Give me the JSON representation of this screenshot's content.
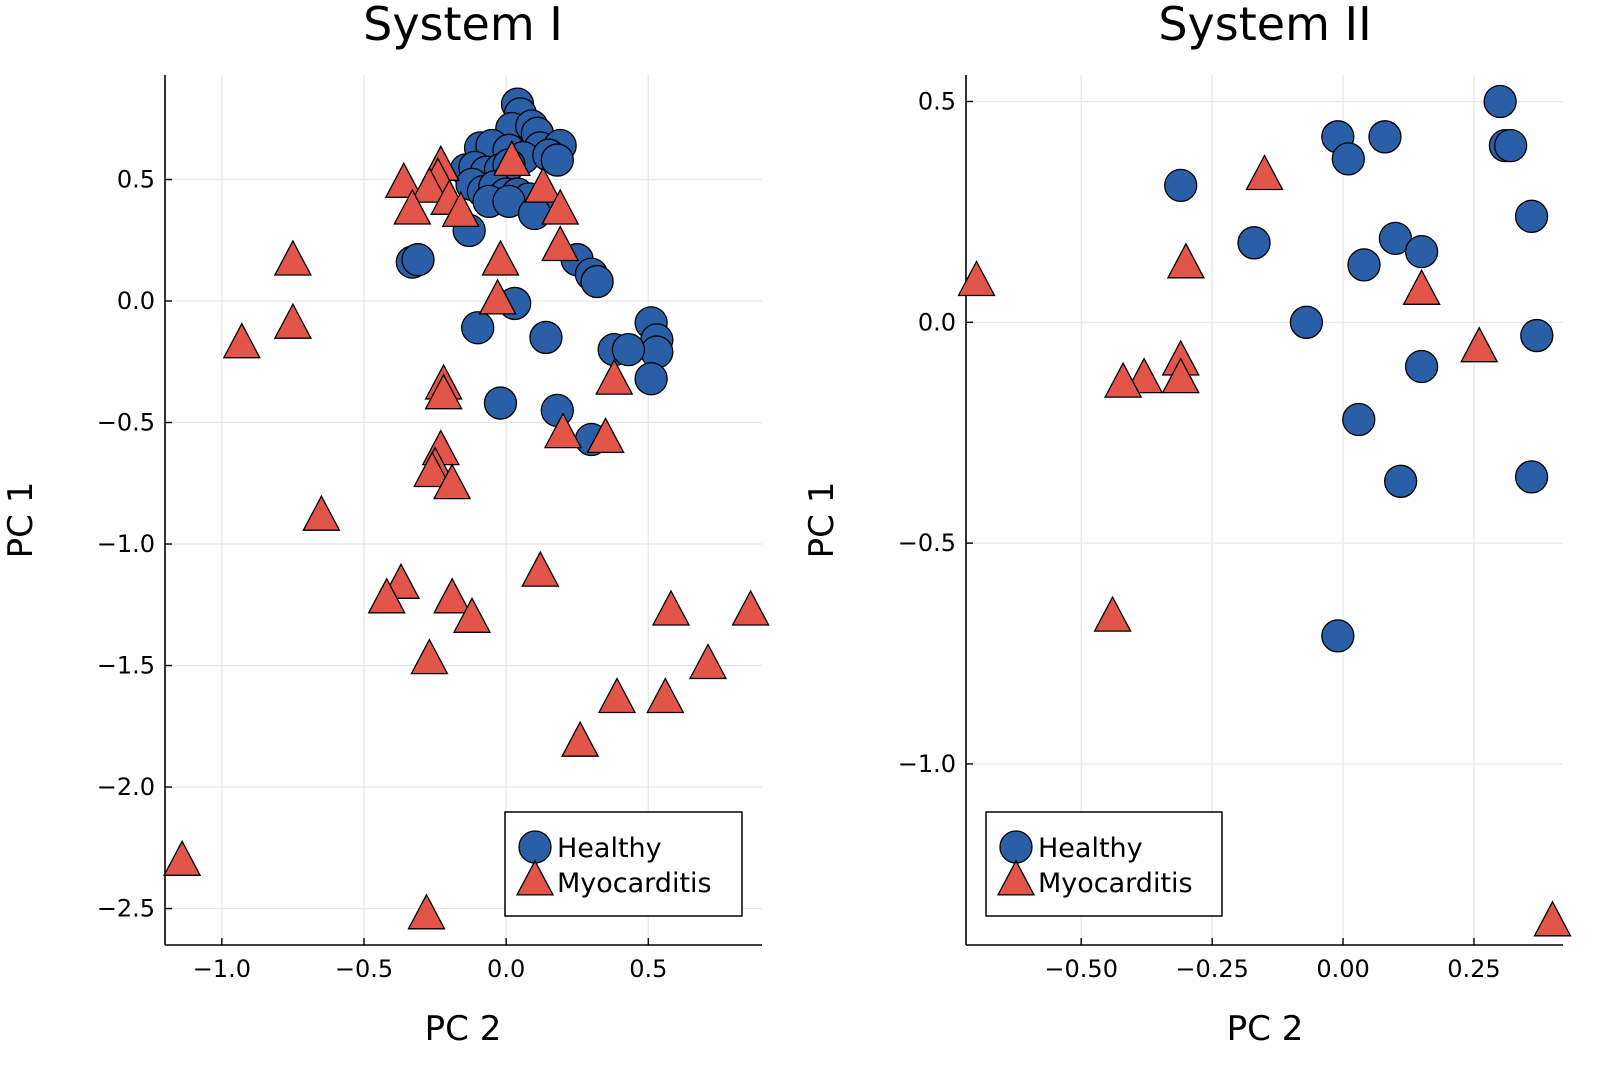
{
  "chart_data": [
    {
      "type": "scatter",
      "title": "System I",
      "xlabel": "PC 2",
      "ylabel": "PC 1",
      "xlim": [
        -1.2,
        0.9
      ],
      "ylim": [
        -2.65,
        0.93
      ],
      "xticks": [
        -1.0,
        -0.5,
        0.0,
        0.5
      ],
      "xtick_labels": [
        "−1.0",
        "−0.5",
        "0.0",
        "0.5"
      ],
      "yticks": [
        0.5,
        0.0,
        -0.5,
        -1.0,
        -1.5,
        -2.0,
        -2.5
      ],
      "ytick_labels": [
        "0.5",
        "0.0",
        "−0.5",
        "−1.0",
        "−1.5",
        "−2.0",
        "−2.5"
      ],
      "grid": true,
      "legend": "bottom-right",
      "series": [
        {
          "name": "Healthy",
          "marker": "circle",
          "color": "#2a5fa8",
          "points": [
            [
              0.04,
              0.81
            ],
            [
              0.05,
              0.77
            ],
            [
              0.02,
              0.71
            ],
            [
              0.09,
              0.72
            ],
            [
              0.11,
              0.69
            ],
            [
              -0.09,
              0.63
            ],
            [
              -0.05,
              0.64
            ],
            [
              0.01,
              0.62
            ],
            [
              0.12,
              0.63
            ],
            [
              0.19,
              0.64
            ],
            [
              0.06,
              0.59
            ],
            [
              0.15,
              0.6
            ],
            [
              0.18,
              0.58
            ],
            [
              -0.14,
              0.54
            ],
            [
              -0.11,
              0.55
            ],
            [
              -0.07,
              0.53
            ],
            [
              -0.02,
              0.54
            ],
            [
              0.01,
              0.56
            ],
            [
              -0.12,
              0.48
            ],
            [
              -0.08,
              0.45
            ],
            [
              -0.04,
              0.47
            ],
            [
              0.0,
              0.44
            ],
            [
              0.04,
              0.44
            ],
            [
              0.08,
              0.42
            ],
            [
              0.13,
              0.4
            ],
            [
              -0.06,
              0.41
            ],
            [
              0.01,
              0.41
            ],
            [
              0.1,
              0.36
            ],
            [
              -0.13,
              0.29
            ],
            [
              -0.33,
              0.16
            ],
            [
              -0.31,
              0.17
            ],
            [
              0.25,
              0.17
            ],
            [
              0.3,
              0.11
            ],
            [
              0.32,
              0.08
            ],
            [
              0.03,
              -0.01
            ],
            [
              -0.1,
              -0.11
            ],
            [
              0.14,
              -0.15
            ],
            [
              0.51,
              -0.09
            ],
            [
              0.53,
              -0.16
            ],
            [
              0.53,
              -0.21
            ],
            [
              0.38,
              -0.2
            ],
            [
              0.43,
              -0.2
            ],
            [
              0.51,
              -0.32
            ],
            [
              -0.02,
              -0.42
            ],
            [
              0.18,
              -0.45
            ],
            [
              0.3,
              -0.57
            ]
          ]
        },
        {
          "name": "Myocarditis",
          "marker": "triangle",
          "color": "#e2564a",
          "points": [
            [
              0.02,
              0.57
            ],
            [
              -0.23,
              0.55
            ],
            [
              -0.24,
              0.5
            ],
            [
              -0.36,
              0.48
            ],
            [
              -0.27,
              0.46
            ],
            [
              0.13,
              0.46
            ],
            [
              -0.33,
              0.37
            ],
            [
              -0.2,
              0.41
            ],
            [
              -0.16,
              0.36
            ],
            [
              0.19,
              0.37
            ],
            [
              -0.75,
              0.16
            ],
            [
              -0.02,
              0.16
            ],
            [
              0.19,
              0.22
            ],
            [
              -0.03,
              0.0
            ],
            [
              -0.75,
              -0.1
            ],
            [
              -0.93,
              -0.18
            ],
            [
              -0.22,
              -0.35
            ],
            [
              -0.22,
              -0.39
            ],
            [
              0.38,
              -0.33
            ],
            [
              0.2,
              -0.55
            ],
            [
              0.35,
              -0.57
            ],
            [
              -0.23,
              -0.62
            ],
            [
              -0.25,
              -0.69
            ],
            [
              -0.26,
              -0.71
            ],
            [
              -0.19,
              -0.76
            ],
            [
              -0.65,
              -0.89
            ],
            [
              0.12,
              -1.12
            ],
            [
              -0.37,
              -1.17
            ],
            [
              -0.42,
              -1.23
            ],
            [
              -0.19,
              -1.23
            ],
            [
              -0.12,
              -1.31
            ],
            [
              0.58,
              -1.28
            ],
            [
              0.86,
              -1.28
            ],
            [
              -0.27,
              -1.48
            ],
            [
              0.71,
              -1.5
            ],
            [
              0.39,
              -1.64
            ],
            [
              0.56,
              -1.64
            ],
            [
              0.26,
              -1.82
            ],
            [
              -1.14,
              -2.31
            ],
            [
              -0.28,
              -2.53
            ]
          ]
        }
      ]
    },
    {
      "type": "scatter",
      "title": "System II",
      "xlabel": "PC 2",
      "ylabel": "PC 1",
      "xlim": [
        -0.72,
        0.42
      ],
      "ylim": [
        -1.41,
        0.56
      ],
      "xticks": [
        -0.5,
        -0.25,
        0.0,
        0.25
      ],
      "xtick_labels": [
        "−0.50",
        "−0.25",
        "0.00",
        "0.25"
      ],
      "yticks": [
        0.5,
        0.0,
        -0.5,
        -1.0
      ],
      "ytick_labels": [
        "0.5",
        "0.0",
        "−0.5",
        "−1.0"
      ],
      "grid": true,
      "legend": "bottom-left",
      "series": [
        {
          "name": "Healthy",
          "marker": "circle",
          "color": "#2a5fa8",
          "points": [
            [
              0.3,
              0.5
            ],
            [
              -0.01,
              0.42
            ],
            [
              0.08,
              0.42
            ],
            [
              0.31,
              0.4
            ],
            [
              0.32,
              0.4
            ],
            [
              0.01,
              0.37
            ],
            [
              -0.31,
              0.31
            ],
            [
              0.36,
              0.24
            ],
            [
              0.1,
              0.19
            ],
            [
              -0.17,
              0.18
            ],
            [
              0.15,
              0.16
            ],
            [
              0.04,
              0.13
            ],
            [
              -0.07,
              0.0
            ],
            [
              0.37,
              -0.03
            ],
            [
              0.15,
              -0.1
            ],
            [
              0.03,
              -0.22
            ],
            [
              0.11,
              -0.36
            ],
            [
              0.36,
              -0.35
            ],
            [
              -0.01,
              -0.71
            ]
          ]
        },
        {
          "name": "Myocarditis",
          "marker": "triangle",
          "color": "#e2564a",
          "points": [
            [
              -0.15,
              0.33
            ],
            [
              -0.3,
              0.13
            ],
            [
              -0.7,
              0.09
            ],
            [
              0.15,
              0.07
            ],
            [
              0.26,
              -0.06
            ],
            [
              -0.31,
              -0.09
            ],
            [
              -0.38,
              -0.13
            ],
            [
              -0.42,
              -0.14
            ],
            [
              -0.31,
              -0.13
            ],
            [
              -0.44,
              -0.67
            ],
            [
              0.4,
              -1.36
            ]
          ]
        }
      ]
    }
  ]
}
